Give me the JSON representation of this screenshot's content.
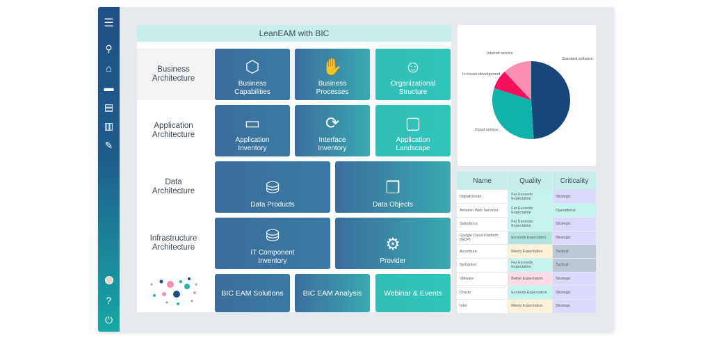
{
  "header": {
    "title": "LeanEAM with BIC"
  },
  "sidebar": {
    "icons": [
      "menu-icon",
      "search-icon",
      "home-icon",
      "folder-icon",
      "documents-icon",
      "chart-icon",
      "wrench-icon",
      "avatar",
      "help-icon",
      "power-icon"
    ]
  },
  "rows": [
    {
      "label": "Business\nArchitecture",
      "tiles": [
        {
          "label": "Business\nCapabilities",
          "icon": "cube-hand-icon"
        },
        {
          "label": "Business\nProcesses",
          "icon": "handshake-icon"
        },
        {
          "label": "Organizational\nStructure",
          "icon": "people-icon"
        }
      ]
    },
    {
      "label": "Application\nArchitecture",
      "tiles": [
        {
          "label": "Application\nInventory",
          "icon": "monitor-icon"
        },
        {
          "label": "Interface\nInventory",
          "icon": "sync-icon"
        },
        {
          "label": "Application\nLandscape",
          "icon": "window-icon"
        }
      ]
    },
    {
      "label": "Data\nArchitecture",
      "tiles": [
        {
          "label": "Data Products",
          "icon": "database-gear-icon"
        },
        {
          "label": "Data Objects",
          "icon": "files-icon"
        }
      ]
    },
    {
      "label": "Infrastructure\nArchitecture",
      "tiles": [
        {
          "label": "IT Component\nInventory",
          "icon": "server-icon"
        },
        {
          "label": "Provider",
          "icon": "hierarchy-icon"
        }
      ]
    }
  ],
  "bottom_tiles": [
    "BIC EAM Solutions",
    "BIC EAM Analysis",
    "Webinar & Events"
  ],
  "chart_data": {
    "type": "pie",
    "labels": [
      "Standard software",
      "Cloud service",
      "In-house development",
      "Internet service"
    ],
    "values": [
      49,
      31,
      8,
      12
    ],
    "colors": [
      "#17467a",
      "#12b2ac",
      "#f5105e",
      "#f98fb2"
    ]
  },
  "table": {
    "headers": [
      "Name",
      "Quality",
      "Criticality"
    ],
    "rows": [
      [
        "DigitalOcean",
        "Far Exceeds Expectation",
        "Strategic"
      ],
      [
        "Amazon Web Services",
        "Far Exceeds Expectation",
        "Operational"
      ],
      [
        "Salesforce",
        "Far Exceeds Expectation",
        "Strategic"
      ],
      [
        "Google Cloud Platform (GCP)",
        "Exceeds Expecation",
        "Strategic"
      ],
      [
        "Accenture",
        "Meets Expectation",
        "Tactical"
      ],
      [
        "Symantec",
        "Far Exceeds Expectation",
        "Tactical"
      ],
      [
        "VMware",
        "Below Expectation",
        "Strategic"
      ],
      [
        "Oracle",
        "Exceeds Expectation",
        "Strategic"
      ],
      [
        "Intel",
        "Meets Expectation",
        "Strategic"
      ]
    ]
  },
  "colors": {
    "Far Exceeds Expectation": "#c3f5ee",
    "Exceeds Expecation": "#b1e6e0",
    "Exceeds Expectation": "#c3f5ee",
    "Meets Expectation": "#fdf1da",
    "Below Expectation": "#fcdbe6",
    "Strategic": "#dcdafc",
    "Operational": "#c3f5ee",
    "Tactical": "#bcc8d6"
  }
}
